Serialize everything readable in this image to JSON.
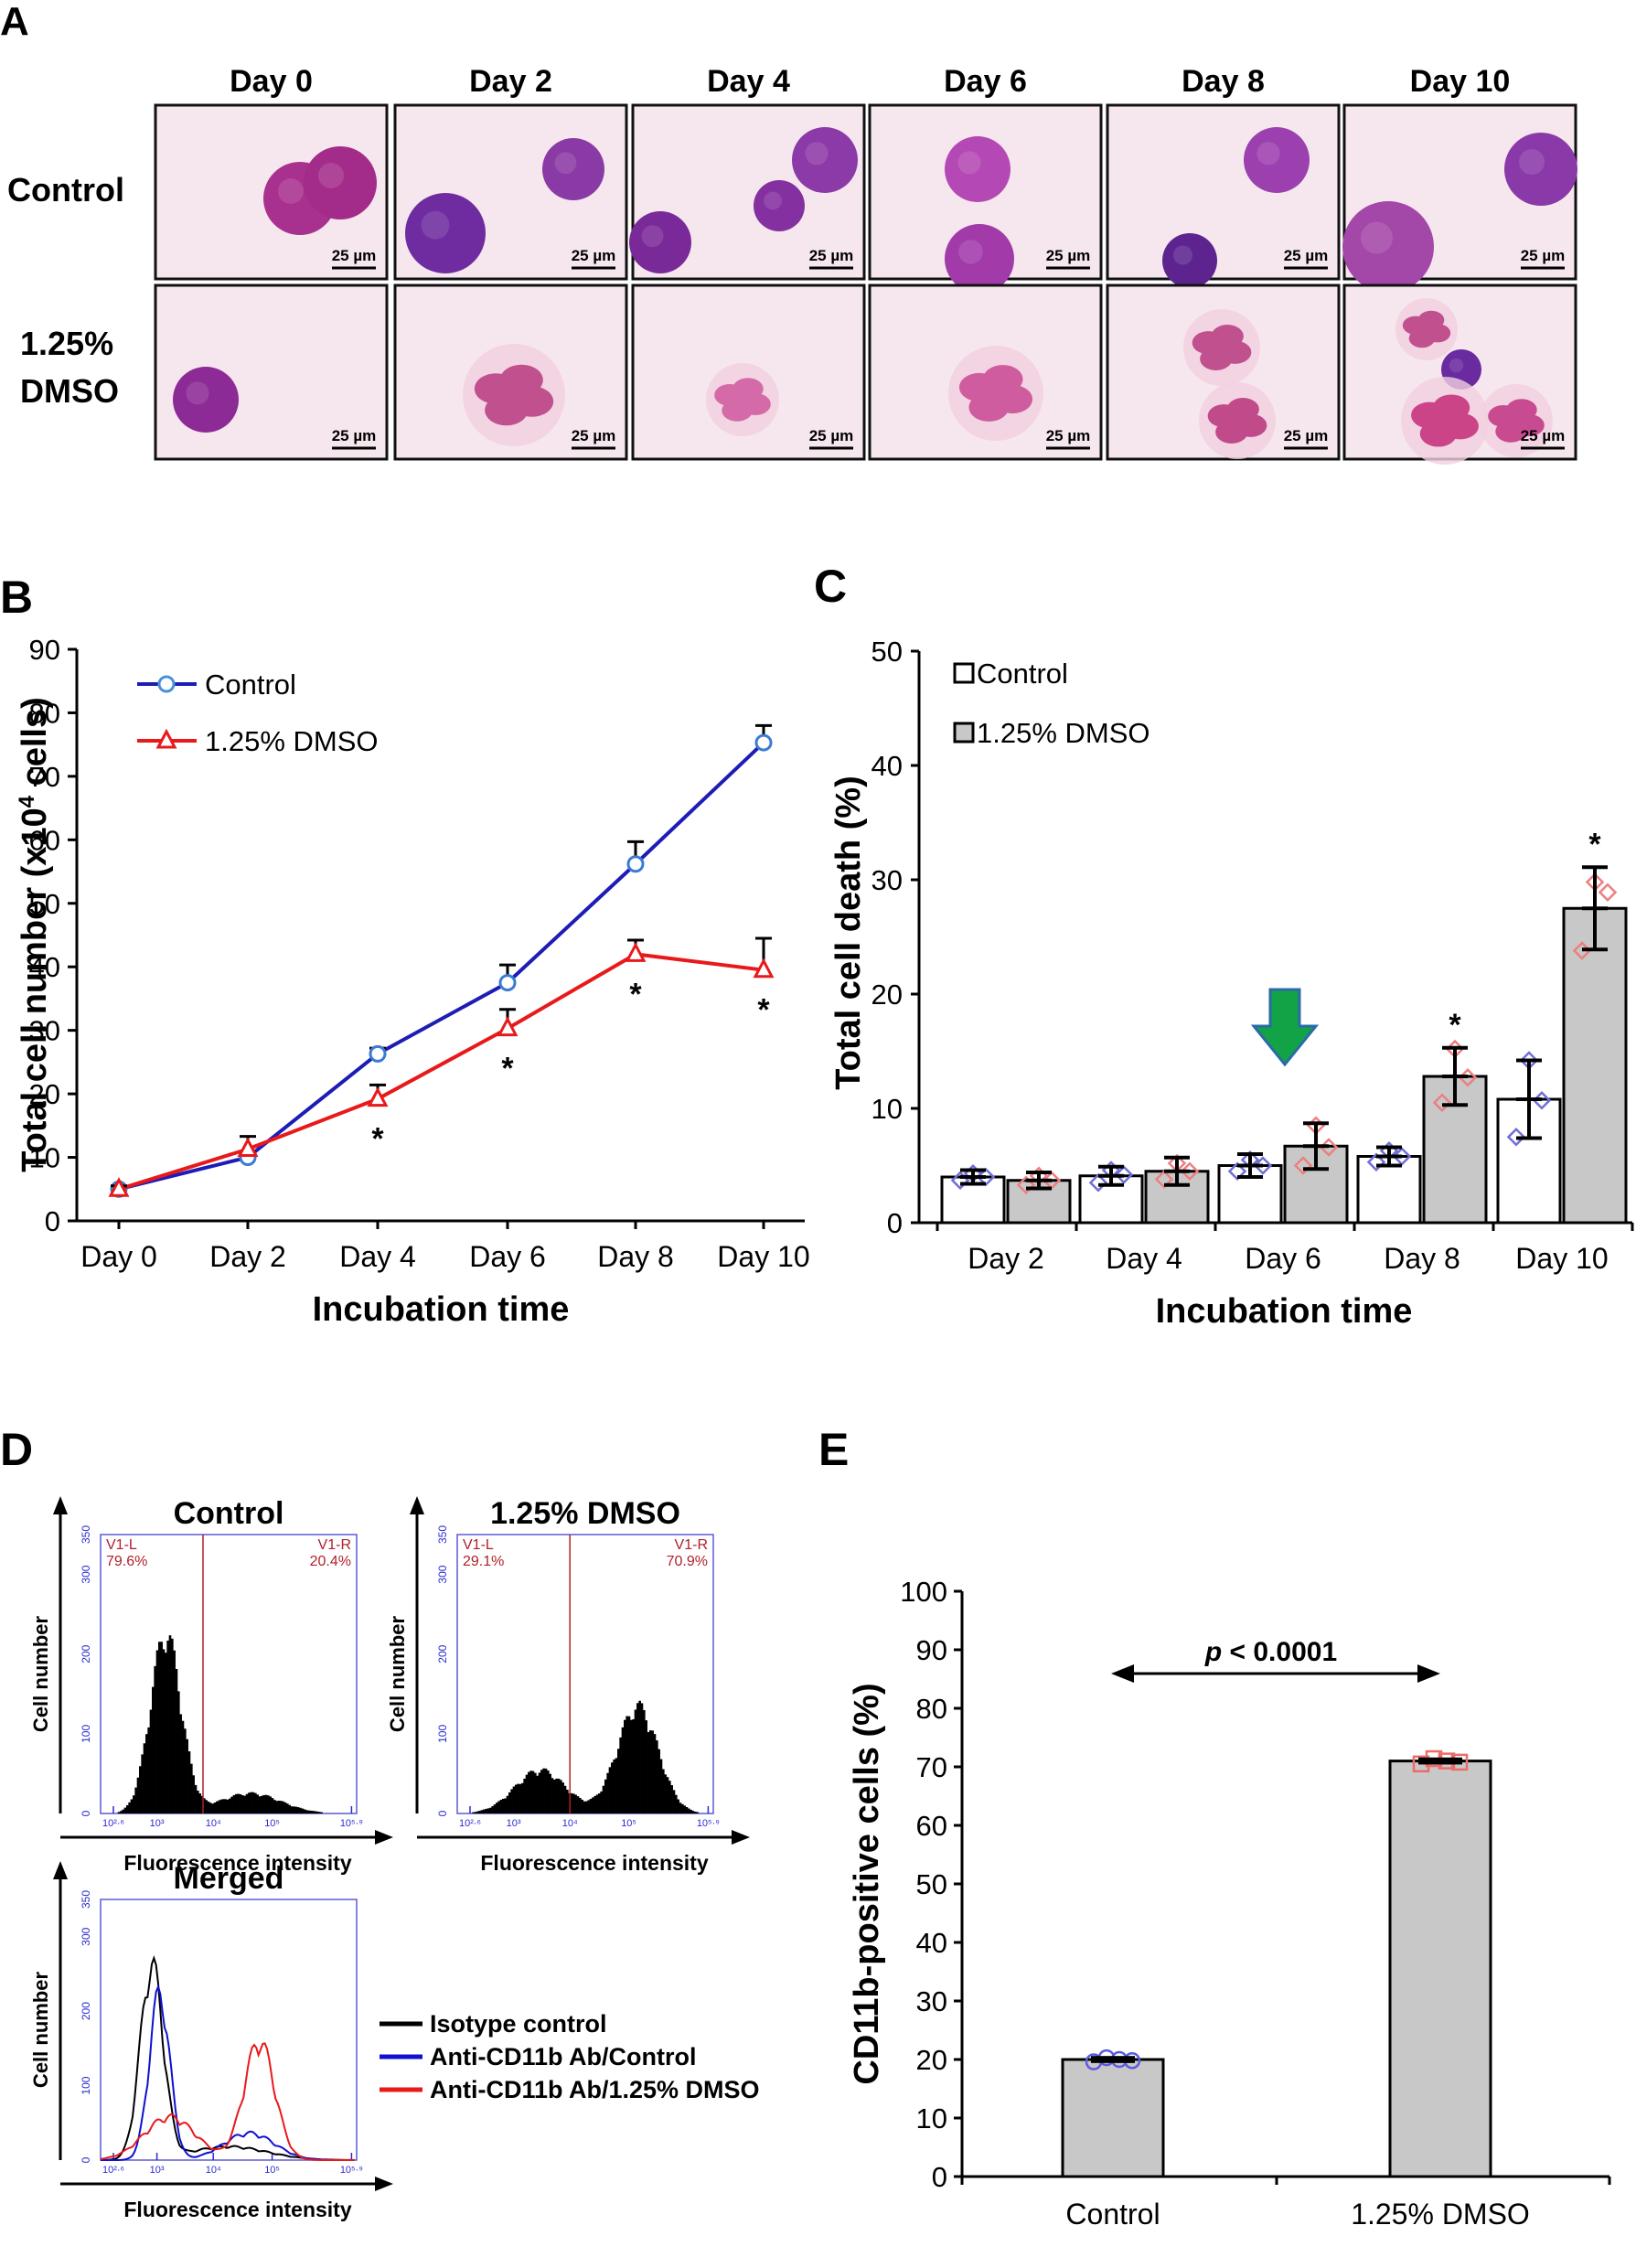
{
  "panels": {
    "A": {
      "letter": "A",
      "columns": [
        "Day 0",
        "Day 2",
        "Day 4",
        "Day 6",
        "Day 8",
        "Day 10"
      ],
      "rows": [
        "Control",
        "1.25%",
        "DMSO"
      ],
      "scale_bar": "25 µm"
    },
    "B": {
      "letter": "B",
      "chart_data": {
        "type": "line",
        "title": "",
        "xlabel": "Incubation time",
        "ylabel": "Total cell number (x10⁴ cells)",
        "ylim": [
          0,
          90
        ],
        "yticks": [
          0,
          10,
          20,
          30,
          40,
          50,
          60,
          70,
          80,
          90
        ],
        "categories": [
          "Day 0",
          "Day 2",
          "Day 4",
          "Day 6",
          "Day 8",
          "Day 10"
        ],
        "series": [
          {
            "name": "Control",
            "color": "#1d1db6",
            "marker": "circle",
            "values": [
              5,
              10,
              26.3,
              37.5,
              56.2,
              75.3
            ],
            "errors": [
              0.5,
              0.8,
              0.9,
              2.8,
              3.5,
              2.7
            ]
          },
          {
            "name": "1.25% DMSO",
            "color": "#e8191b",
            "marker": "triangle",
            "values": [
              5,
              11.3,
              19.2,
              30.3,
              42,
              39.5
            ],
            "errors": [
              0.5,
              2,
              2.2,
              3,
              2.2,
              5
            ]
          }
        ],
        "significance": [
          "",
          "",
          "*",
          "*",
          "*",
          "*"
        ]
      }
    },
    "C": {
      "letter": "C",
      "chart_data": {
        "type": "bar",
        "title": "",
        "xlabel": "Incubation time",
        "ylabel": "Total cell death (%)",
        "ylim": [
          0,
          50
        ],
        "yticks": [
          0,
          10,
          20,
          30,
          40,
          50
        ],
        "categories": [
          "Day 2",
          "Day 4",
          "Day 6",
          "Day 8",
          "Day 10"
        ],
        "series": [
          {
            "name": "Control",
            "fill": "#ffffff",
            "point_color": "#6f6fd6",
            "values": [
              4,
              4.1,
              5,
              5.8,
              10.8
            ],
            "errors": [
              0.6,
              0.8,
              1,
              0.8,
              3.4
            ],
            "points": [
              [
                3.7,
                4.3,
                4
              ],
              [
                3.5,
                4.6,
                4.2
              ],
              [
                4.5,
                5.5,
                5
              ],
              [
                5.3,
                6.3,
                5.8
              ],
              [
                7.5,
                14.2,
                10.7
              ]
            ]
          },
          {
            "name": "1.25% DMSO",
            "fill": "#c8c8c8",
            "point_color": "#ee7f7f",
            "values": [
              3.7,
              4.5,
              6.7,
              12.8,
              27.5
            ],
            "errors": [
              0.7,
              1.2,
              2,
              2.5,
              3.6
            ],
            "points": [
              [
                3.3,
                4.1,
                3.7
              ],
              [
                3.8,
                5.2,
                4.5
              ],
              [
                5,
                8.5,
                6.6
              ],
              [
                10.5,
                15.2,
                12.7
              ],
              [
                23.8,
                29.8,
                28.9
              ]
            ]
          }
        ],
        "significance": [
          "",
          "",
          "",
          "*",
          "*"
        ],
        "highlight_arrow_at": "Day 6"
      }
    },
    "D": {
      "letter": "D",
      "x_axis_label": "Fluorescence intensity",
      "y_axis_label": "Cell number",
      "yticks": [
        "0",
        "100",
        "200",
        "300",
        "350"
      ],
      "xticks": [
        "10²·⁶",
        "10³",
        "10⁴",
        "10⁵",
        "10⁵·⁹"
      ],
      "histograms": [
        {
          "title": "Control",
          "gate_left_label": "V1-L",
          "gate_left_value": "79.6%",
          "gate_right_label": "V1-R",
          "gate_right_value": "20.4%"
        },
        {
          "title": "1.25% DMSO",
          "gate_left_label": "V1-L",
          "gate_left_value": "29.1%",
          "gate_right_label": "V1-R",
          "gate_right_value": "70.9%"
        },
        {
          "title": "Merged"
        }
      ],
      "legend": [
        {
          "label": "Isotype control",
          "color": "#000000"
        },
        {
          "label": "Anti-CD11b Ab/Control",
          "color": "#1010d0"
        },
        {
          "label": "Anti-CD11b Ab/1.25% DMSO",
          "color": "#e8191b"
        }
      ]
    },
    "E": {
      "letter": "E",
      "chart_data": {
        "type": "bar",
        "title": "",
        "xlabel": "",
        "ylabel": "CD11b-positive cells (%)",
        "ylim": [
          0,
          100
        ],
        "yticks": [
          0,
          10,
          20,
          30,
          40,
          50,
          60,
          70,
          80,
          90,
          100
        ],
        "categories": [
          "Control",
          "1.25% DMSO"
        ],
        "values": [
          20,
          71
        ],
        "errors": [
          0.6,
          0.6
        ],
        "points": [
          [
            19.6,
            20.3,
            20,
            19.8
          ],
          [
            70.5,
            71.4,
            71,
            70.8
          ]
        ],
        "point_colors": [
          "#5b5bdc",
          "#ee6b6b"
        ],
        "fill": "#c8c8c8",
        "annotation": {
          "italic": "p",
          "text": " < 0.0001"
        }
      }
    }
  }
}
